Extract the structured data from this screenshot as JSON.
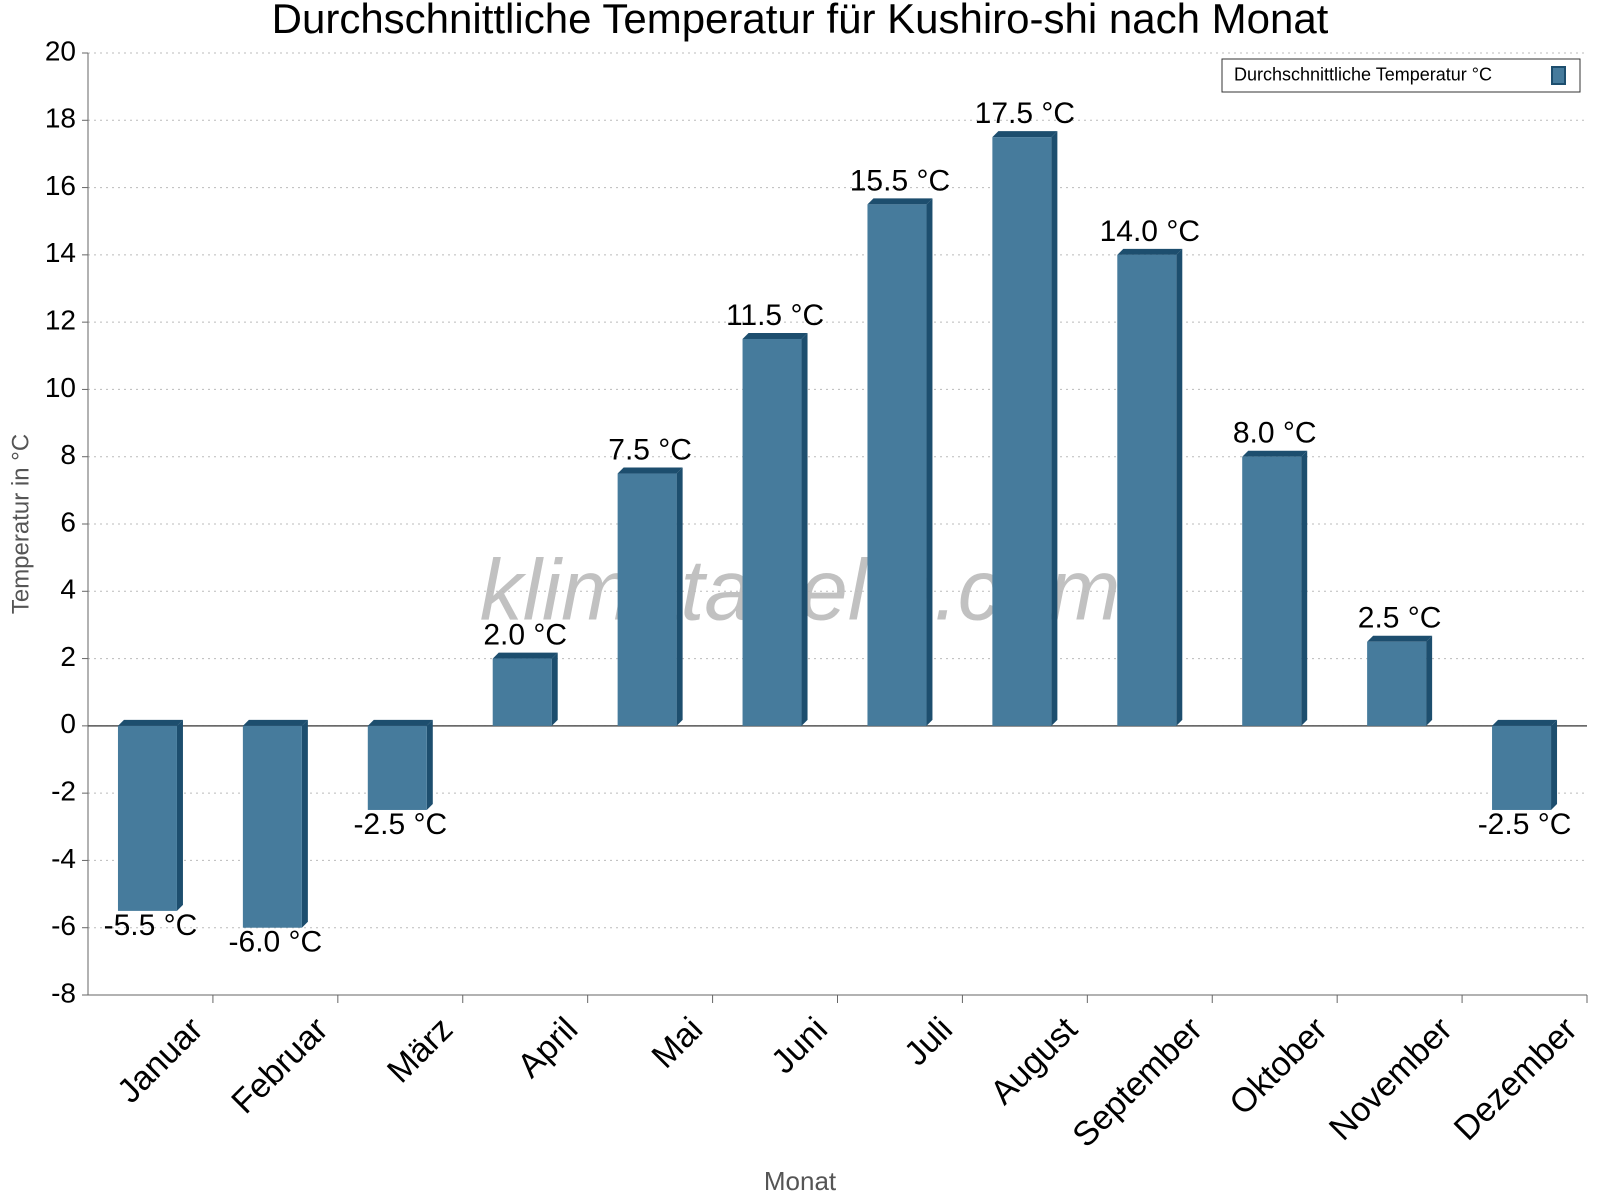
{
  "chart_data": {
    "type": "bar",
    "title": "Durchschnittliche Temperatur für Kushiro-shi nach Monat",
    "x_label": "Monat",
    "y_label": "Temperatur in °C",
    "watermark": "klimatabelle.com",
    "categories": [
      "Januar",
      "Februar",
      "März",
      "April",
      "Mai",
      "Juni",
      "Juli",
      "August",
      "September",
      "Oktober",
      "November",
      "Dezember"
    ],
    "series": [
      {
        "name": "Durchschnittliche Temperatur °C",
        "color": "#467b9c",
        "values": [
          -5.5,
          -6.0,
          -2.5,
          2.0,
          7.5,
          11.5,
          15.5,
          17.5,
          14.0,
          8.0,
          2.5,
          -2.5
        ],
        "value_labels": [
          "-5.5 °C",
          "-6.0 °C",
          "-2.5 °C",
          "2.0 °C",
          "7.5 °C",
          "11.5 °C",
          "15.5 °C",
          "17.5 °C",
          "14.0 °C",
          "8.0 °C",
          "2.5 °C",
          "-2.5 °C"
        ]
      }
    ],
    "ylim": [
      -8,
      20
    ],
    "yticks": [
      -8,
      -6,
      -4,
      -2,
      0,
      2,
      4,
      6,
      8,
      10,
      12,
      14,
      16,
      18,
      20
    ],
    "grid": true,
    "legend": "top-right"
  }
}
